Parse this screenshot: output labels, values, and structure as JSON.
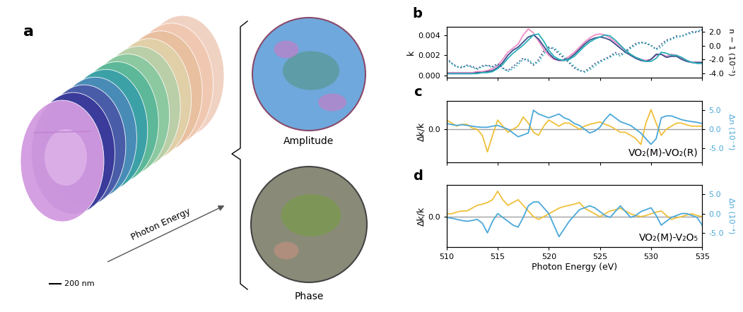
{
  "panel_a": {
    "label": "a",
    "scale_bar": "200 nm",
    "arrow_label": "Photon Energy",
    "images": [
      "Amplitude",
      "Phase"
    ]
  },
  "chart_data": [
    {
      "type": "line",
      "panel": "b",
      "x": [
        510,
        510.5,
        511,
        511.5,
        512,
        512.5,
        513,
        513.5,
        514,
        514.5,
        515,
        515.5,
        516,
        516.5,
        517,
        517.5,
        518,
        518.5,
        519,
        519.5,
        520,
        520.5,
        521,
        521.5,
        522,
        522.5,
        523,
        523.5,
        524,
        524.5,
        525,
        525.5,
        526,
        526.5,
        527,
        527.5,
        528,
        528.5,
        529,
        529.5,
        530,
        530.5,
        531,
        531.5,
        532,
        532.5,
        533,
        533.5,
        534,
        534.5,
        535
      ],
      "xlim": [
        510,
        535
      ],
      "xticks": [
        510,
        515,
        520,
        525,
        530,
        535
      ],
      "ylabel": "k",
      "ylim": [
        -0.0002,
        0.0048
      ],
      "yticks": [
        {
          "value": 0,
          "label": "0.000"
        },
        {
          "value": 0.002,
          "label": "0.002"
        },
        {
          "value": 0.004,
          "label": "0.004"
        }
      ],
      "y2label": "n − 1 (10⁻³)",
      "y2lim": [
        -4.6,
        2.7
      ],
      "y2ticks": [
        {
          "value": -4,
          "label": "-4.0"
        },
        {
          "value": -2,
          "label": "-2.0"
        },
        {
          "value": 0,
          "label": "0.0"
        },
        {
          "value": 2,
          "label": "2.0"
        }
      ],
      "tick_labels": "y",
      "series": [
        {
          "color": "#f08cc4",
          "line_style": "solid",
          "values": [
            0.0003,
            0.0003,
            0.0003,
            0.0003,
            0.0003,
            0.0003,
            0.0004,
            0.0004,
            0.0005,
            0.0007,
            0.001,
            0.0016,
            0.0023,
            0.0027,
            0.0031,
            0.004,
            0.0046,
            0.0042,
            0.0034,
            0.0026,
            0.002,
            0.0016,
            0.0015,
            0.0016,
            0.0019,
            0.0023,
            0.0028,
            0.0033,
            0.0037,
            0.004,
            0.0041,
            0.004,
            0.0037,
            0.0033,
            0.0029,
            0.0025,
            0.0021,
            0.0018,
            0.0016,
            0.0015,
            0.0016,
            0.002,
            0.0021,
            0.0019,
            0.0021,
            0.002,
            0.0017,
            0.0015,
            0.0013,
            0.0013,
            0.0013
          ]
        },
        {
          "color": "#3d4d8c",
          "line_style": "solid",
          "values": [
            0.0002,
            0.0002,
            0.0002,
            0.0002,
            0.0002,
            0.0002,
            0.0003,
            0.0003,
            0.0004,
            0.0005,
            0.0008,
            0.0013,
            0.002,
            0.0025,
            0.0028,
            0.0033,
            0.0038,
            0.004,
            0.0036,
            0.0029,
            0.0022,
            0.0017,
            0.0015,
            0.0015,
            0.0017,
            0.0021,
            0.0026,
            0.0031,
            0.0035,
            0.0037,
            0.0038,
            0.0037,
            0.0035,
            0.0031,
            0.0027,
            0.0023,
            0.002,
            0.0017,
            0.0015,
            0.0014,
            0.0016,
            0.0021,
            0.0021,
            0.0018,
            0.0019,
            0.0019,
            0.0016,
            0.0014,
            0.0013,
            0.0013,
            0.0013
          ]
        },
        {
          "color": "#2ab0b8",
          "line_style": "solid",
          "values": [
            0.0002,
            0.0002,
            0.0002,
            0.0002,
            0.0002,
            0.0002,
            0.0002,
            0.0003,
            0.0003,
            0.0004,
            0.0007,
            0.0011,
            0.0017,
            0.0022,
            0.0026,
            0.003,
            0.0035,
            0.004,
            0.0041,
            0.0034,
            0.0025,
            0.0019,
            0.0016,
            0.0015,
            0.0016,
            0.0019,
            0.0024,
            0.0029,
            0.0033,
            0.0036,
            0.0038,
            0.004,
            0.0039,
            0.0035,
            0.003,
            0.0025,
            0.0021,
            0.0018,
            0.0016,
            0.0014,
            0.0014,
            0.0017,
            0.0023,
            0.0022,
            0.002,
            0.002,
            0.0018,
            0.0015,
            0.0013,
            0.0012,
            0.0012
          ]
        },
        {
          "color": "#3d4d8c",
          "line_style": "dotted",
          "axis": "y2",
          "values": [
            -1.8,
            -2.5,
            -3.0,
            -3.2,
            -2.8,
            -3.0,
            -3.3,
            -2.9,
            -2.8,
            -3.0,
            -2.6,
            -3.2,
            -3.6,
            -3.0,
            -2.4,
            -1.8,
            -2.2,
            -2.8,
            -2.0,
            -0.8,
            -0.2,
            -0.5,
            -1.2,
            -1.8,
            -2.5,
            -3.2,
            -3.6,
            -3.7,
            -3.2,
            -2.6,
            -2.2,
            -1.9,
            -1.5,
            -1.0,
            -1.3,
            -0.8,
            -0.2,
            0.3,
            0.5,
            0.3,
            0.0,
            -0.5,
            0.2,
            0.8,
            1.0,
            1.4,
            1.3,
            1.7,
            2.0,
            1.9,
            2.3
          ]
        },
        {
          "color": "#2ab0b8",
          "line_style": "dotted",
          "axis": "y2",
          "values": [
            -2.0,
            -2.6,
            -3.1,
            -3.0,
            -2.9,
            -3.1,
            -3.4,
            -3.0,
            -2.9,
            -3.1,
            -2.8,
            -3.3,
            -3.7,
            -3.3,
            -2.7,
            -2.0,
            -2.0,
            -2.6,
            -2.4,
            -1.2,
            -0.4,
            -0.3,
            -0.9,
            -1.6,
            -2.3,
            -3.0,
            -3.5,
            -3.8,
            -3.5,
            -2.9,
            -2.4,
            -2.0,
            -1.7,
            -1.2,
            -1.5,
            -1.0,
            -0.4,
            0.1,
            0.4,
            0.4,
            0.1,
            -0.6,
            -0.2,
            0.6,
            0.9,
            1.2,
            1.4,
            1.6,
            1.8,
            2.1,
            2.2
          ]
        }
      ]
    },
    {
      "type": "line",
      "panel": "c",
      "annotation": "VO₂(M)-VO₂(R)",
      "hline": 0,
      "x": [
        510,
        510.5,
        511,
        511.5,
        512,
        512.5,
        513,
        513.5,
        514,
        514.5,
        515,
        515.5,
        516,
        516.5,
        517,
        517.5,
        518,
        518.5,
        519,
        519.5,
        520,
        520.5,
        521,
        521.5,
        522,
        522.5,
        523,
        523.5,
        524,
        524.5,
        525,
        525.5,
        526,
        526.5,
        527,
        527.5,
        528,
        528.5,
        529,
        529.5,
        530,
        530.5,
        531,
        531.5,
        532,
        532.5,
        533,
        533.5,
        534,
        534.5,
        535
      ],
      "xlim": [
        510,
        535
      ],
      "xticks": [
        510,
        515,
        520,
        525,
        530,
        535
      ],
      "ylabel": "Δk/k",
      "ylim": [
        -0.54,
        0.46
      ],
      "yticks": [
        {
          "value": 0,
          "label": "0.0"
        }
      ],
      "y2label": "Δn (10⁻⁴)",
      "y2lim": [
        -8.7,
        7.4
      ],
      "y2ticks": [
        {
          "value": -5,
          "label": "-5.0"
        },
        {
          "value": 0,
          "label": "0.0"
        },
        {
          "value": 5,
          "label": "5.0"
        }
      ],
      "tick_labels": "y",
      "series": [
        {
          "color": "#f0c03a",
          "line_style": "solid",
          "values": [
            0.15,
            0.1,
            0.05,
            0.08,
            0.08,
            0.02,
            0.0,
            -0.1,
            -0.37,
            -0.1,
            0.15,
            0.05,
            -0.05,
            0.0,
            0.05,
            0.2,
            0.1,
            -0.05,
            -0.1,
            0.05,
            0.15,
            0.1,
            0.05,
            0.1,
            0.1,
            0.05,
            0.0,
            0.05,
            0.08,
            0.1,
            0.12,
            0.08,
            0.05,
            0.0,
            -0.05,
            -0.05,
            -0.1,
            -0.15,
            -0.25,
            0.1,
            0.32,
            0.1,
            -0.1,
            0.0,
            0.05,
            0.1,
            0.1,
            0.07,
            0.05,
            0.05,
            0.05
          ]
        },
        {
          "color": "#4aa8d8",
          "line_style": "solid",
          "axis": "y2",
          "values": [
            1.5,
            1.2,
            1.0,
            1.2,
            1.0,
            0.8,
            0.6,
            0.5,
            0.5,
            0.8,
            1.0,
            0.5,
            0.0,
            -1.0,
            -2.0,
            -1.5,
            -1.0,
            5.0,
            4.0,
            3.5,
            3.0,
            3.5,
            4.0,
            3.0,
            2.5,
            1.5,
            1.0,
            0.0,
            -1.0,
            -0.5,
            0.5,
            2.5,
            4.0,
            3.0,
            2.0,
            1.5,
            1.0,
            0.0,
            -1.0,
            -2.5,
            -4.0,
            -2.5,
            3.0,
            3.5,
            3.5,
            3.0,
            2.5,
            2.2,
            2.0,
            1.8,
            1.5
          ]
        }
      ]
    },
    {
      "type": "line",
      "panel": "d",
      "annotation": "VO₂(M)-V₂O₅",
      "hline": 0,
      "xlabel": "Photon Energy (eV)",
      "x": [
        510,
        510.5,
        511,
        511.5,
        512,
        512.5,
        513,
        513.5,
        514,
        514.5,
        515,
        515.5,
        516,
        516.5,
        517,
        517.5,
        518,
        518.5,
        519,
        519.5,
        520,
        520.5,
        521,
        521.5,
        522,
        522.5,
        523,
        523.5,
        524,
        524.5,
        525,
        525.5,
        526,
        526.5,
        527,
        527.5,
        528,
        528.5,
        529,
        529.5,
        530,
        530.5,
        531,
        531.5,
        532,
        532.5,
        533,
        533.5,
        534,
        534.5,
        535
      ],
      "xlim": [
        510,
        535
      ],
      "xticks": [
        510,
        515,
        520,
        525,
        530,
        535
      ],
      "ylabel": "Δk/k",
      "ylim": [
        -0.54,
        0.56
      ],
      "yticks": [
        {
          "value": 0,
          "label": "0.0"
        }
      ],
      "y2label": "Δn (10⁻⁴)",
      "y2lim": [
        -8.7,
        7.4
      ],
      "y2ticks": [
        {
          "value": -5,
          "label": "-5.0"
        },
        {
          "value": 0,
          "label": "0.0"
        },
        {
          "value": 5,
          "label": "5.0"
        }
      ],
      "series": [
        {
          "color": "#f0c03a",
          "line_style": "solid",
          "values": [
            0.05,
            0.05,
            0.08,
            0.1,
            0.1,
            0.15,
            0.2,
            0.22,
            0.25,
            0.3,
            0.45,
            0.3,
            0.2,
            0.25,
            0.3,
            0.2,
            0.1,
            0.0,
            -0.05,
            0.0,
            0.05,
            0.1,
            0.15,
            0.18,
            0.2,
            0.22,
            0.25,
            0.15,
            0.1,
            0.05,
            0.0,
            0.05,
            0.1,
            0.12,
            0.15,
            0.1,
            0.05,
            0.02,
            0.0,
            0.02,
            0.05,
            0.08,
            0.1,
            0.02,
            -0.05,
            -0.02,
            0.0,
            0.03,
            0.05,
            0.02,
            0.0
          ]
        },
        {
          "color": "#4aa8d8",
          "line_style": "solid",
          "axis": "y2",
          "values": [
            -1.0,
            -1.2,
            -1.5,
            -1.8,
            -2.0,
            -1.8,
            -1.5,
            -2.5,
            -5.0,
            -2.0,
            0.0,
            -1.0,
            -2.0,
            -3.0,
            -3.5,
            -1.0,
            2.0,
            3.0,
            3.0,
            1.5,
            0.0,
            -3.0,
            -6.0,
            -4.0,
            -2.0,
            -0.5,
            1.0,
            1.5,
            2.0,
            1.5,
            0.5,
            -0.5,
            -1.0,
            0.5,
            2.0,
            0.5,
            -1.0,
            -0.5,
            0.5,
            1.0,
            1.5,
            -0.5,
            -3.0,
            -2.0,
            -1.0,
            -0.5,
            0.0,
            0.0,
            -0.5,
            -1.0,
            -3.0
          ]
        }
      ]
    }
  ]
}
